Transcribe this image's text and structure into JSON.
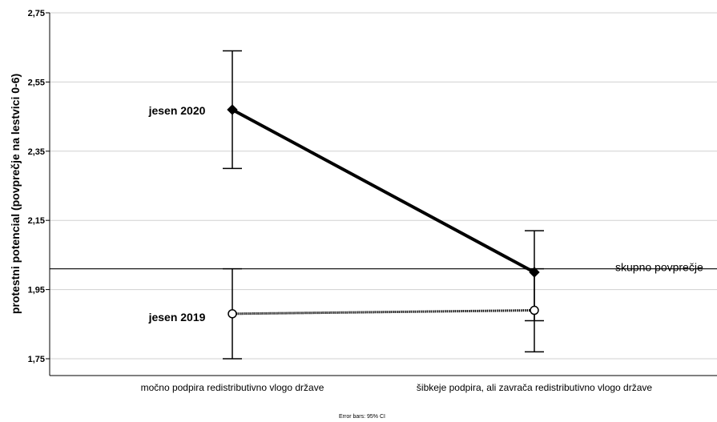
{
  "chart_data": {
    "type": "line",
    "ylabel": "protestni potencial (povprečje na lestvici 0-6)",
    "xlabel": "",
    "categories": [
      "močno podpira redistributivno vlogo države",
      "šibkeje podpira, ali zavrača redistributivno vlogo države"
    ],
    "ylim": [
      1.7,
      2.75
    ],
    "yticks": [
      "1,75",
      "1,95",
      "2,15",
      "2,35",
      "2,55",
      "2,75"
    ],
    "ytick_values": [
      1.75,
      1.95,
      2.15,
      2.35,
      2.55,
      2.75
    ],
    "grid": "horizontal",
    "series": [
      {
        "name": "jesen 2020",
        "values": [
          2.47,
          2.0
        ],
        "ci_low": [
          2.3,
          1.86
        ],
        "ci_high": [
          2.64,
          2.12
        ],
        "marker": "filled-diamond",
        "line": "solid"
      },
      {
        "name": "jesen 2019",
        "values": [
          1.88,
          1.89
        ],
        "ci_low": [
          1.75,
          1.77
        ],
        "ci_high": [
          2.01,
          2.01
        ],
        "marker": "open-circle",
        "line": "dotted"
      }
    ],
    "reference_line": {
      "label": "skupno povprečje",
      "value": 2.01
    },
    "footnote": "Error bars: 95% CI"
  }
}
